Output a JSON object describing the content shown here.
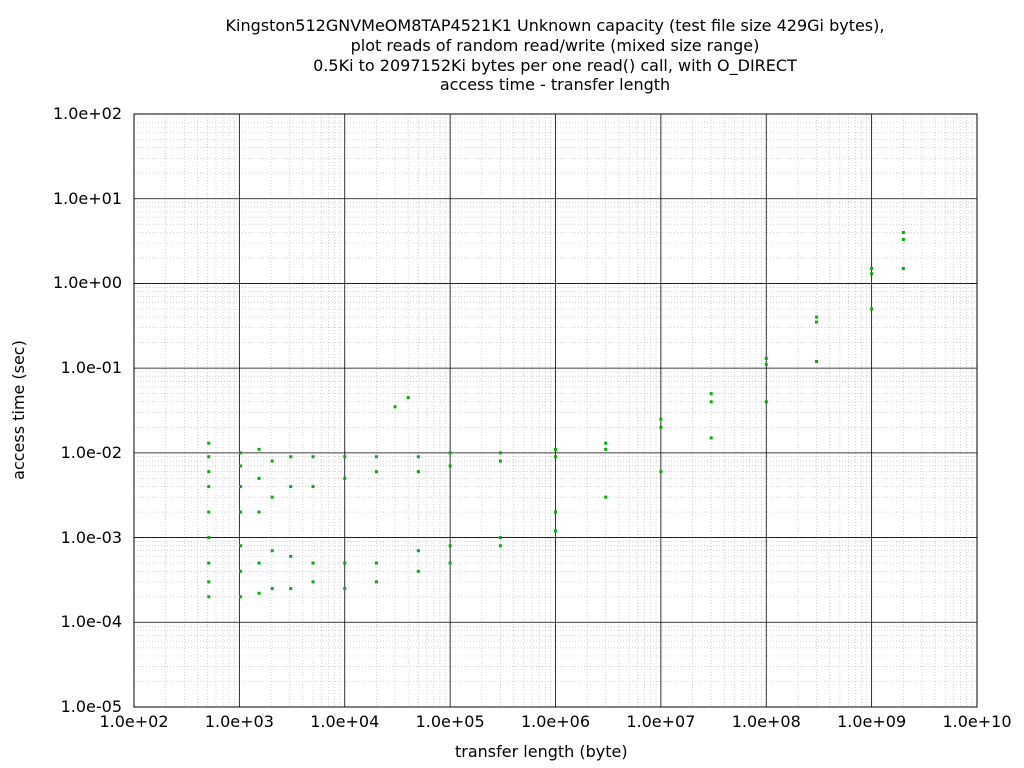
{
  "chart_data": {
    "type": "scatter",
    "title_lines": [
      "Kingston512GNVMeOM8TAP4521K1 Unknown capacity (test file size 429Gi bytes),",
      "plot reads of random read/write (mixed size range)",
      "0.5Ki to 2097152Ki bytes per one read() call, with O_DIRECT",
      "access time - transfer length"
    ],
    "xlabel": "transfer length (byte)",
    "ylabel": "access time (sec)",
    "x_scale": "log",
    "y_scale": "log",
    "xlim": [
      100,
      10000000000
    ],
    "ylim": [
      1e-05,
      100
    ],
    "x_ticks": [
      "1.0e+02",
      "1.0e+03",
      "1.0e+04",
      "1.0e+05",
      "1.0e+06",
      "1.0e+07",
      "1.0e+08",
      "1.0e+09",
      "1.0e+10"
    ],
    "y_ticks": [
      "1.0e+02",
      "1.0e+01",
      "1.0e+00",
      "1.0e-01",
      "1.0e-02",
      "1.0e-03",
      "1.0e-04",
      "1.0e-05"
    ],
    "grid": true,
    "legend": "none",
    "marker_color": "#00b000",
    "series": [
      {
        "points": [
          [
            512,
            0.0002
          ],
          [
            512,
            0.0003
          ],
          [
            512,
            0.0005
          ],
          [
            512,
            0.001
          ],
          [
            512,
            0.002
          ],
          [
            512,
            0.004
          ],
          [
            512,
            0.006
          ],
          [
            512,
            0.009
          ],
          [
            512,
            0.013
          ],
          [
            1024,
            0.0002
          ],
          [
            1024,
            0.0004
          ],
          [
            1024,
            0.0008
          ],
          [
            1024,
            0.002
          ],
          [
            1024,
            0.004
          ],
          [
            1024,
            0.007
          ],
          [
            1024,
            0.01
          ],
          [
            1536,
            0.00022
          ],
          [
            1536,
            0.0005
          ],
          [
            1536,
            0.002
          ],
          [
            1536,
            0.005
          ],
          [
            1536,
            0.011
          ],
          [
            2048,
            0.00025
          ],
          [
            2048,
            0.0007
          ],
          [
            2048,
            0.003
          ],
          [
            2048,
            0.008
          ],
          [
            3072,
            0.00025
          ],
          [
            3072,
            0.0006
          ],
          [
            3072,
            0.004
          ],
          [
            3072,
            0.009
          ],
          [
            5000,
            0.0003
          ],
          [
            5000,
            0.0005
          ],
          [
            5000,
            0.004
          ],
          [
            5000,
            0.009
          ],
          [
            10000,
            0.00025
          ],
          [
            10000,
            0.0005
          ],
          [
            10000,
            0.005
          ],
          [
            10000,
            0.009
          ],
          [
            20000,
            0.0003
          ],
          [
            20000,
            0.0005
          ],
          [
            20000,
            0.006
          ],
          [
            20000,
            0.009
          ],
          [
            30000,
            0.035
          ],
          [
            40000,
            0.045
          ],
          [
            50000,
            0.0004
          ],
          [
            50000,
            0.0007
          ],
          [
            50000,
            0.006
          ],
          [
            50000,
            0.009
          ],
          [
            100000,
            0.0005
          ],
          [
            100000,
            0.0008
          ],
          [
            100000,
            0.007
          ],
          [
            100000,
            0.01
          ],
          [
            300000,
            0.0008
          ],
          [
            300000,
            0.001
          ],
          [
            300000,
            0.008
          ],
          [
            300000,
            0.01
          ],
          [
            1000000,
            0.0012
          ],
          [
            1000000,
            0.002
          ],
          [
            1000000,
            0.009
          ],
          [
            1000000,
            0.011
          ],
          [
            3000000,
            0.003
          ],
          [
            3000000,
            0.011
          ],
          [
            3000000,
            0.013
          ],
          [
            10000000,
            0.006
          ],
          [
            10000000,
            0.02
          ],
          [
            10000000,
            0.025
          ],
          [
            30000000,
            0.015
          ],
          [
            30000000,
            0.04
          ],
          [
            30000000,
            0.05
          ],
          [
            100000000,
            0.04
          ],
          [
            100000000,
            0.11
          ],
          [
            100000000,
            0.13
          ],
          [
            300000000,
            0.12
          ],
          [
            300000000,
            0.35
          ],
          [
            300000000,
            0.4
          ],
          [
            1000000000,
            0.5
          ],
          [
            1000000000,
            1.3
          ],
          [
            1000000000,
            1.5
          ],
          [
            2000000000,
            1.5
          ],
          [
            2000000000,
            3.3
          ],
          [
            2000000000,
            4.0
          ]
        ]
      }
    ]
  }
}
